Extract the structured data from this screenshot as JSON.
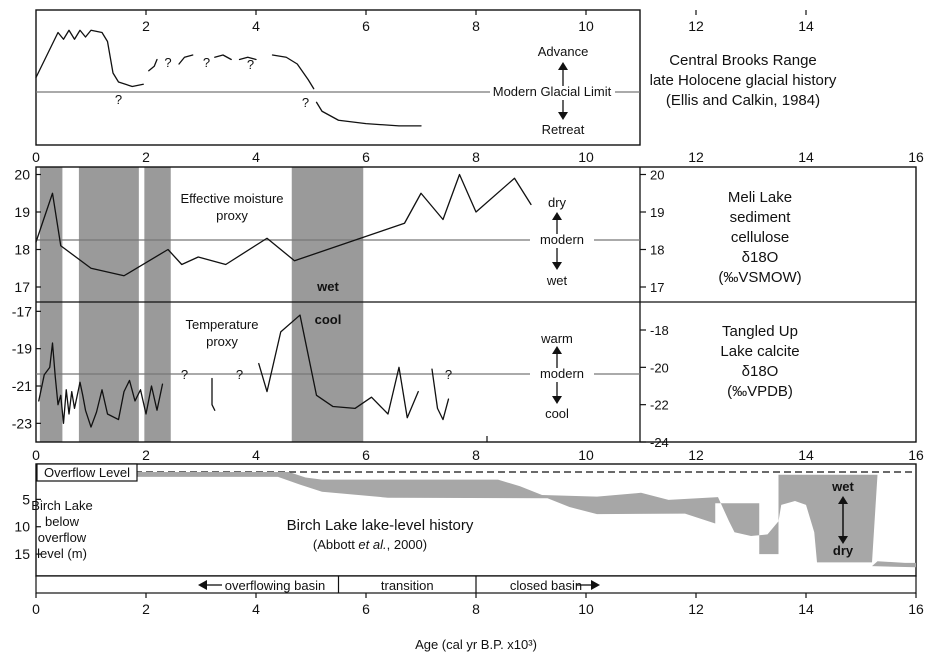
{
  "chart_data": [
    {
      "type": "line",
      "panel": "top",
      "text": {
        "title_lines": [
          "Central Brooks Range",
          "late Holocene glacial history",
          "(Ellis and Calkin, 1984)"
        ],
        "ref_label": "Modern Glacial Limit",
        "up_label": "Advance",
        "down_label": "Retreat",
        "question_mark": "?"
      },
      "x_ticks": [
        2,
        4,
        6,
        8,
        10,
        12,
        14
      ],
      "xlim": [
        0,
        16
      ],
      "ref_y": 0,
      "ylim": [
        -3,
        3
      ],
      "question_x": [
        1.5,
        2.4,
        3.1,
        3.9,
        4.9
      ],
      "series": [
        {
          "segments": [
            [
              [
                0,
                0
              ],
              [
                0.2,
                1.0
              ],
              [
                0.4,
                2.0
              ],
              [
                0.5,
                1.7
              ],
              [
                0.6,
                2.1
              ],
              [
                0.7,
                1.7
              ],
              [
                0.8,
                2.1
              ],
              [
                0.9,
                1.8
              ],
              [
                1.0,
                2.1
              ],
              [
                1.2,
                2.0
              ],
              [
                1.3,
                1.6
              ],
              [
                1.4,
                0.2
              ],
              [
                1.5,
                -0.2
              ],
              [
                1.75,
                -0.4
              ],
              [
                1.95,
                -0.3
              ]
            ],
            [
              [
                2.05,
                0.3
              ],
              [
                2.15,
                0.5
              ],
              [
                2.2,
                0.8
              ]
            ],
            [
              [
                2.6,
                0.6
              ],
              [
                2.7,
                0.9
              ],
              [
                2.85,
                1.0
              ]
            ],
            [
              [
                3.25,
                0.9
              ],
              [
                3.4,
                1.0
              ],
              [
                3.55,
                0.8
              ]
            ],
            [
              [
                3.7,
                0.8
              ],
              [
                3.85,
                0.9
              ],
              [
                4.0,
                0.8
              ]
            ],
            [
              [
                4.3,
                1.0
              ],
              [
                4.55,
                0.9
              ],
              [
                4.75,
                0.6
              ],
              [
                4.95,
                -0.1
              ],
              [
                5.05,
                -0.5
              ]
            ],
            [
              [
                5.1,
                -1.1
              ],
              [
                5.2,
                -1.5
              ],
              [
                5.5,
                -1.9
              ],
              [
                6.0,
                -2.05
              ],
              [
                6.6,
                -2.15
              ],
              [
                7.0,
                -2.15
              ]
            ]
          ]
        }
      ]
    },
    {
      "type": "line",
      "panel": "middle",
      "text": {
        "series_label_lines": [
          "Effective moisture",
          "proxy"
        ],
        "side_label_lines": [
          "Meli Lake",
          "sediment",
          "cellulose",
          "δ18O",
          "(‰VSMOW)"
        ],
        "up_label": "dry",
        "mid_label": "modern",
        "down_label": "wet",
        "band_note": "wet"
      },
      "x_ticks": [
        0,
        2,
        4,
        6,
        8,
        10,
        12,
        14,
        16
      ],
      "xlim": [
        0,
        16
      ],
      "ylim": [
        16.6,
        20.2
      ],
      "left_ticks": [
        17,
        18,
        19,
        20
      ],
      "right_ticks": [
        17,
        18,
        19,
        20
      ],
      "ref_y": 18.3,
      "x": [
        0,
        0.3,
        0.45,
        1.0,
        1.6,
        2.4,
        2.65,
        2.95,
        3.45,
        4.2,
        4.7,
        5.5,
        5.9,
        6.3,
        6.7,
        7.0,
        7.4,
        7.7,
        8.0,
        8.7,
        9.0
      ],
      "y": [
        18.2,
        19.5,
        18.1,
        17.5,
        17.3,
        18.0,
        17.6,
        17.8,
        17.6,
        18.3,
        17.7,
        18.1,
        18.3,
        18.5,
        18.7,
        19.5,
        18.8,
        20.0,
        19.0,
        19.9,
        19.2
      ]
    },
    {
      "type": "line",
      "panel": "lower-middle",
      "text": {
        "series_label_lines": [
          "Temperature",
          "proxy"
        ],
        "side_label_lines": [
          "Tangled Up",
          "Lake calcite",
          "δ18O",
          "(‰VPDB)"
        ],
        "up_label": "warm",
        "mid_label": "modern",
        "down_label": "cool",
        "band_note": "cool",
        "question_mark": "?"
      },
      "x_ticks": [
        0,
        2,
        4,
        6,
        8,
        10,
        12,
        14,
        16
      ],
      "xlim": [
        0,
        16
      ],
      "ylim": [
        -24,
        -16.5
      ],
      "left_ticks": [
        -17,
        -19,
        -21,
        -23
      ],
      "right_ticks": [
        -18,
        -20,
        -22,
        -24
      ],
      "ref_y": -20.6,
      "question_x": [
        2.7,
        3.7,
        7.5
      ],
      "series": [
        {
          "segments": [
            [
              [
                0.05,
                -21.8
              ],
              [
                0.15,
                -20.4
              ],
              [
                0.25,
                -20.0
              ],
              [
                0.3,
                -18.7
              ],
              [
                0.35,
                -20.5
              ],
              [
                0.4,
                -22.0
              ],
              [
                0.45,
                -21.5
              ],
              [
                0.5,
                -23.0
              ],
              [
                0.55,
                -21.2
              ],
              [
                0.6,
                -22.5
              ],
              [
                0.65,
                -21.3
              ],
              [
                0.7,
                -22.2
              ],
              [
                0.75,
                -21.5
              ],
              [
                0.8,
                -20.8
              ],
              [
                0.85,
                -21.5
              ],
              [
                0.9,
                -22.3
              ],
              [
                1.0,
                -23.2
              ],
              [
                1.1,
                -22.4
              ],
              [
                1.2,
                -21.2
              ],
              [
                1.3,
                -22.5
              ],
              [
                1.5,
                -22.8
              ],
              [
                1.6,
                -21.3
              ],
              [
                1.7,
                -20.7
              ],
              [
                1.8,
                -21.8
              ],
              [
                1.9,
                -21.2
              ],
              [
                2.0,
                -22.5
              ],
              [
                2.1,
                -21.0
              ],
              [
                2.2,
                -22.3
              ],
              [
                2.3,
                -20.9
              ]
            ],
            [
              [
                3.2,
                -20.6
              ],
              [
                3.2,
                -22.0
              ],
              [
                3.25,
                -22.3
              ]
            ],
            [
              [
                4.05,
                -19.8
              ],
              [
                4.2,
                -21.3
              ],
              [
                4.45,
                -18.1
              ],
              [
                4.8,
                -17.2
              ],
              [
                5.1,
                -21.5
              ],
              [
                5.4,
                -22.1
              ],
              [
                5.8,
                -22.2
              ],
              [
                6.1,
                -21.6
              ],
              [
                6.4,
                -22.5
              ],
              [
                6.6,
                -20.0
              ],
              [
                6.75,
                -22.7
              ],
              [
                6.95,
                -21.3
              ]
            ],
            [
              [
                7.2,
                -20.1
              ],
              [
                7.3,
                -22.2
              ],
              [
                7.4,
                -22.8
              ],
              [
                7.5,
                -21.7
              ]
            ]
          ]
        }
      ]
    },
    {
      "type": "area",
      "panel": "bottom",
      "text": {
        "ylabel_lines": [
          "Birch Lake",
          "below",
          "overflow",
          "level (m)"
        ],
        "title_lines": [
          "Birch Lake lake-level history",
          "(Abbott et al., 2000)"
        ],
        "overflow_label": "Overflow Level",
        "up_label": "wet",
        "down_label": "dry"
      },
      "phases": [
        {
          "label": "overflowing basin",
          "x": [
            0,
            5.5
          ],
          "arrow": "left"
        },
        {
          "label": "transition",
          "x": [
            5.5,
            8
          ],
          "arrow": "none"
        },
        {
          "label": "closed basin",
          "x": [
            8,
            16
          ],
          "arrow": "right"
        }
      ],
      "x_ticks": [
        0,
        2,
        4,
        6,
        8,
        10,
        12,
        14,
        16
      ],
      "xlim": [
        0,
        16
      ],
      "ylim": [
        0,
        19
      ],
      "y_ticks": [
        5,
        10,
        15
      ],
      "upper_edge": [
        [
          0,
          0
        ],
        [
          4.6,
          0
        ],
        [
          4.9,
          1
        ],
        [
          5.2,
          1.4
        ],
        [
          8.4,
          1.4
        ],
        [
          8.8,
          2.6
        ],
        [
          9.2,
          4.2
        ],
        [
          10.2,
          4.5
        ],
        [
          11.0,
          3.8
        ],
        [
          11.5,
          5.1
        ],
        [
          12.4,
          4.6
        ],
        [
          12.6,
          9
        ],
        [
          12.7,
          11
        ],
        [
          13.0,
          11.7
        ],
        [
          13.3,
          11.4
        ],
        [
          13.5,
          9
        ],
        [
          13.55,
          6
        ],
        [
          13.8,
          5.3
        ],
        [
          14.0,
          6
        ],
        [
          14.15,
          11
        ],
        [
          14.2,
          16.5
        ],
        [
          15.2,
          16.5
        ],
        [
          15.3,
          0.5
        ],
        [
          13.5,
          0.5
        ],
        [
          13.5,
          15
        ],
        [
          13.15,
          15
        ],
        [
          13.15,
          5.7
        ],
        [
          12.35,
          5.7
        ],
        [
          12.35,
          9.4
        ],
        [
          11.8,
          7.6
        ],
        [
          10.2,
          7.7
        ],
        [
          9.7,
          6.4
        ],
        [
          9.3,
          4.8
        ],
        [
          6.4,
          4.7
        ],
        [
          5.2,
          3.6
        ],
        [
          4.8,
          2.3
        ],
        [
          4.4,
          0.9
        ],
        [
          0.1,
          0.9
        ],
        [
          0.1,
          0
        ]
      ],
      "lower_edge": [
        [
          15.3,
          16.3
        ],
        [
          15.8,
          16.6
        ],
        [
          16,
          16.6
        ],
        [
          16,
          17.4
        ],
        [
          15.2,
          17.2
        ]
      ],
      "xlabel": "Age (cal yr B.P. x10³)"
    }
  ]
}
